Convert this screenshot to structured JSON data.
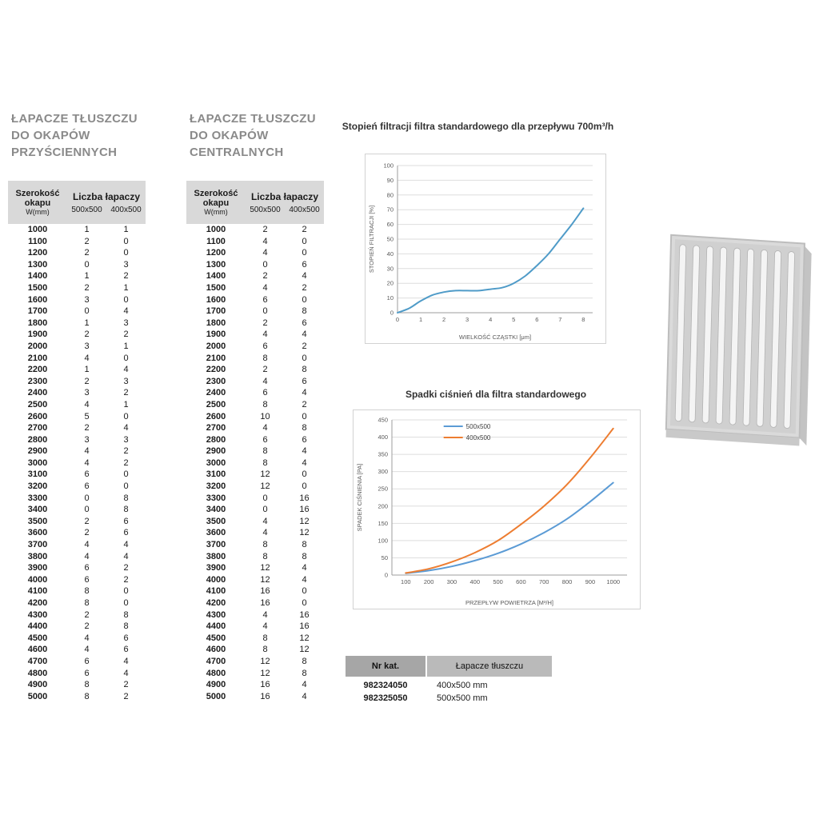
{
  "tables": {
    "left": {
      "title_lines": [
        "ŁAPACZE TŁUSZCZU",
        "DO OKAPÓW",
        "PRZYŚCIENNYCH"
      ],
      "header": {
        "width_label_1": "Szerokość",
        "width_label_2": "okapu",
        "width_label_3": "W(mm)",
        "group_label": "Liczba łapaczy",
        "col_500": "500x500",
        "col_400": "400x500"
      },
      "rows": [
        [
          1000,
          1,
          1
        ],
        [
          1100,
          2,
          0
        ],
        [
          1200,
          2,
          0
        ],
        [
          1300,
          0,
          3
        ],
        [
          1400,
          1,
          2
        ],
        [
          1500,
          2,
          1
        ],
        [
          1600,
          3,
          0
        ],
        [
          1700,
          0,
          4
        ],
        [
          1800,
          1,
          3
        ],
        [
          1900,
          2,
          2
        ],
        [
          2000,
          3,
          1
        ],
        [
          2100,
          4,
          0
        ],
        [
          2200,
          1,
          4
        ],
        [
          2300,
          2,
          3
        ],
        [
          2400,
          3,
          2
        ],
        [
          2500,
          4,
          1
        ],
        [
          2600,
          5,
          0
        ],
        [
          2700,
          2,
          4
        ],
        [
          2800,
          3,
          3
        ],
        [
          2900,
          4,
          2
        ],
        [
          3000,
          4,
          2
        ],
        [
          3100,
          6,
          0
        ],
        [
          3200,
          6,
          0
        ],
        [
          3300,
          0,
          8
        ],
        [
          3400,
          0,
          8
        ],
        [
          3500,
          2,
          6
        ],
        [
          3600,
          2,
          6
        ],
        [
          3700,
          4,
          4
        ],
        [
          3800,
          4,
          4
        ],
        [
          3900,
          6,
          2
        ],
        [
          4000,
          6,
          2
        ],
        [
          4100,
          8,
          0
        ],
        [
          4200,
          8,
          0
        ],
        [
          4300,
          2,
          8
        ],
        [
          4400,
          2,
          8
        ],
        [
          4500,
          4,
          6
        ],
        [
          4600,
          4,
          6
        ],
        [
          4700,
          6,
          4
        ],
        [
          4800,
          6,
          4
        ],
        [
          4900,
          8,
          2
        ],
        [
          5000,
          8,
          2
        ]
      ]
    },
    "center": {
      "title_lines": [
        "ŁAPACZE TŁUSZCZU",
        "DO OKAPÓW",
        "CENTRALNYCH"
      ],
      "header": {
        "width_label_1": "Szerokość",
        "width_label_2": "okapu",
        "width_label_3": "W(mm)",
        "group_label": "Liczba łapaczy",
        "col_500": "500x500",
        "col_400": "400x500"
      },
      "rows": [
        [
          1000,
          2,
          2
        ],
        [
          1100,
          4,
          0
        ],
        [
          1200,
          4,
          0
        ],
        [
          1300,
          0,
          6
        ],
        [
          1400,
          2,
          4
        ],
        [
          1500,
          4,
          2
        ],
        [
          1600,
          6,
          0
        ],
        [
          1700,
          0,
          8
        ],
        [
          1800,
          2,
          6
        ],
        [
          1900,
          4,
          4
        ],
        [
          2000,
          6,
          2
        ],
        [
          2100,
          8,
          0
        ],
        [
          2200,
          2,
          8
        ],
        [
          2300,
          4,
          6
        ],
        [
          2400,
          6,
          4
        ],
        [
          2500,
          8,
          2
        ],
        [
          2600,
          10,
          0
        ],
        [
          2700,
          4,
          8
        ],
        [
          2800,
          6,
          6
        ],
        [
          2900,
          8,
          4
        ],
        [
          3000,
          8,
          4
        ],
        [
          3100,
          12,
          0
        ],
        [
          3200,
          12,
          0
        ],
        [
          3300,
          0,
          16
        ],
        [
          3400,
          0,
          16
        ],
        [
          3500,
          4,
          12
        ],
        [
          3600,
          4,
          12
        ],
        [
          3700,
          8,
          8
        ],
        [
          3800,
          8,
          8
        ],
        [
          3900,
          12,
          4
        ],
        [
          4000,
          12,
          4
        ],
        [
          4100,
          16,
          0
        ],
        [
          4200,
          16,
          0
        ],
        [
          4300,
          4,
          16
        ],
        [
          4400,
          4,
          16
        ],
        [
          4500,
          8,
          12
        ],
        [
          4600,
          8,
          12
        ],
        [
          4700,
          12,
          8
        ],
        [
          4800,
          12,
          8
        ],
        [
          4900,
          16,
          4
        ],
        [
          5000,
          16,
          4
        ]
      ]
    }
  },
  "chart_data": [
    {
      "type": "line",
      "title": "Stopień filtracji filtra standardowego dla przepływu 700m³/h",
      "xlabel": "WIELKOŚĆ CZĄSTKI [μm]",
      "ylabel": "STOPIEŃ FILTRACJI [%]",
      "xlim": [
        0,
        8.4
      ],
      "ylim": [
        0,
        100
      ],
      "xticks": [
        0,
        1,
        2,
        3,
        4,
        5,
        6,
        7,
        8
      ],
      "yticks": [
        0,
        10,
        20,
        30,
        40,
        50,
        60,
        70,
        80,
        90,
        100
      ],
      "grid": "horizontal",
      "legend": false,
      "series": [
        {
          "name": "filtracja",
          "color": "#4f9bc8",
          "points": [
            [
              0,
              0
            ],
            [
              0.5,
              3
            ],
            [
              1,
              8
            ],
            [
              1.5,
              12
            ],
            [
              2,
              14
            ],
            [
              2.5,
              15
            ],
            [
              3,
              15
            ],
            [
              3.5,
              15
            ],
            [
              4,
              16
            ],
            [
              4.5,
              17
            ],
            [
              5,
              20
            ],
            [
              5.5,
              25
            ],
            [
              6,
              32
            ],
            [
              6.5,
              40
            ],
            [
              7,
              50
            ],
            [
              7.5,
              60
            ],
            [
              8,
              71
            ]
          ]
        }
      ]
    },
    {
      "type": "line",
      "title": "Spadki ciśnień dla filtra standardowego",
      "xlabel": "PRZEPŁYW POWIETRZA [M³/H]",
      "ylabel": "SPADEK CIŚNIENIA [PA]",
      "xlim": [
        40,
        1060
      ],
      "ylim": [
        0,
        450
      ],
      "xticks": [
        100,
        200,
        300,
        400,
        500,
        600,
        700,
        800,
        900,
        1000
      ],
      "yticks": [
        0,
        50,
        100,
        150,
        200,
        250,
        300,
        350,
        400,
        450
      ],
      "grid": "horizontal",
      "legend": true,
      "series": [
        {
          "name": "500x500",
          "color": "#5b9bd5",
          "points": [
            [
              100,
              5
            ],
            [
              200,
              13
            ],
            [
              300,
              25
            ],
            [
              400,
              42
            ],
            [
              500,
              63
            ],
            [
              600,
              90
            ],
            [
              700,
              123
            ],
            [
              800,
              163
            ],
            [
              900,
              213
            ],
            [
              1000,
              268
            ]
          ]
        },
        {
          "name": "400x500",
          "color": "#ed7d31",
          "points": [
            [
              100,
              6
            ],
            [
              200,
              18
            ],
            [
              300,
              38
            ],
            [
              400,
              65
            ],
            [
              500,
              100
            ],
            [
              600,
              147
            ],
            [
              700,
              200
            ],
            [
              800,
              263
            ],
            [
              900,
              340
            ],
            [
              1000,
              425
            ]
          ]
        }
      ]
    }
  ],
  "catalog_table": {
    "headers": [
      "Nr kat.",
      "Łapacze tłuszczu"
    ],
    "rows": [
      [
        "982324050",
        "400x500 mm"
      ],
      [
        "982325050",
        "500x500 mm"
      ]
    ]
  }
}
